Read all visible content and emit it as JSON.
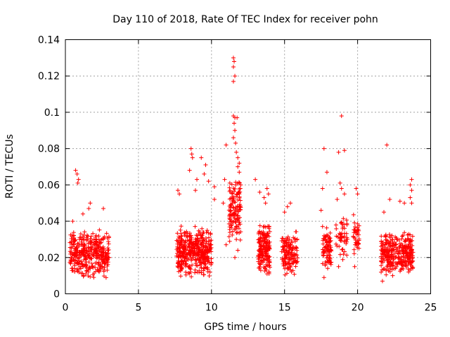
{
  "chart_data": {
    "type": "scatter",
    "title": "Day 110 of 2018, Rate Of TEC Index for receiver pohn",
    "xlabel": "GPS time / hours",
    "ylabel": "ROTI / TECUs",
    "xlim": [
      0,
      25
    ],
    "ylim": [
      0,
      0.14
    ],
    "x_ticks": [
      0,
      5,
      10,
      15,
      20,
      25
    ],
    "y_ticks": [
      0,
      0.02,
      0.04,
      0.06,
      0.08,
      0.1,
      0.12,
      0.14
    ],
    "x_tick_labels": [
      "0",
      "5",
      "10",
      "15",
      "20",
      "25"
    ],
    "y_tick_labels": [
      "0",
      "0.02",
      "0.04",
      "0.06",
      "0.08",
      "0.1",
      "0.12",
      "0.14"
    ],
    "grid": true,
    "marker": "plus",
    "color": "#ff0000",
    "clusters": [
      {
        "x_range": [
          0.3,
          3.0
        ],
        "y_range": [
          0.008,
          0.036
        ],
        "count": 380
      },
      {
        "x_range": [
          7.6,
          10.0
        ],
        "y_range": [
          0.008,
          0.038
        ],
        "count": 420
      },
      {
        "x_range": [
          11.2,
          12.0
        ],
        "y_range": [
          0.025,
          0.065
        ],
        "count": 130
      },
      {
        "x_range": [
          13.2,
          14.0
        ],
        "y_range": [
          0.01,
          0.04
        ],
        "count": 180
      },
      {
        "x_range": [
          14.8,
          15.9
        ],
        "y_range": [
          0.01,
          0.035
        ],
        "count": 140
      },
      {
        "x_range": [
          17.6,
          18.2
        ],
        "y_range": [
          0.012,
          0.038
        ],
        "count": 90
      },
      {
        "x_range": [
          18.5,
          19.3
        ],
        "y_range": [
          0.018,
          0.045
        ],
        "count": 50
      },
      {
        "x_range": [
          19.7,
          20.1
        ],
        "y_range": [
          0.02,
          0.045
        ],
        "count": 40
      },
      {
        "x_range": [
          21.6,
          23.8
        ],
        "y_range": [
          0.01,
          0.035
        ],
        "count": 320
      }
    ],
    "highlights": [
      {
        "x": 0.7,
        "y": 0.068
      },
      {
        "x": 0.8,
        "y": 0.066
      },
      {
        "x": 0.9,
        "y": 0.063
      },
      {
        "x": 0.85,
        "y": 0.061
      },
      {
        "x": 1.7,
        "y": 0.05
      },
      {
        "x": 1.6,
        "y": 0.047
      },
      {
        "x": 0.5,
        "y": 0.04
      },
      {
        "x": 2.6,
        "y": 0.047
      },
      {
        "x": 1.2,
        "y": 0.044
      },
      {
        "x": 7.7,
        "y": 0.057
      },
      {
        "x": 7.8,
        "y": 0.055
      },
      {
        "x": 8.6,
        "y": 0.08
      },
      {
        "x": 8.65,
        "y": 0.077
      },
      {
        "x": 8.7,
        "y": 0.075
      },
      {
        "x": 8.5,
        "y": 0.068
      },
      {
        "x": 9.3,
        "y": 0.075
      },
      {
        "x": 9.6,
        "y": 0.071
      },
      {
        "x": 9.8,
        "y": 0.062
      },
      {
        "x": 9.5,
        "y": 0.066
      },
      {
        "x": 9.0,
        "y": 0.063
      },
      {
        "x": 8.9,
        "y": 0.057
      },
      {
        "x": 10.2,
        "y": 0.059
      },
      {
        "x": 10.2,
        "y": 0.052
      },
      {
        "x": 11.5,
        "y": 0.13
      },
      {
        "x": 11.55,
        "y": 0.128
      },
      {
        "x": 11.5,
        "y": 0.125
      },
      {
        "x": 11.6,
        "y": 0.12
      },
      {
        "x": 11.5,
        "y": 0.117
      },
      {
        "x": 11.5,
        "y": 0.098
      },
      {
        "x": 11.6,
        "y": 0.097
      },
      {
        "x": 11.75,
        "y": 0.097
      },
      {
        "x": 11.55,
        "y": 0.094
      },
      {
        "x": 11.6,
        "y": 0.09
      },
      {
        "x": 11.5,
        "y": 0.086
      },
      {
        "x": 11.65,
        "y": 0.083
      },
      {
        "x": 11.7,
        "y": 0.078
      },
      {
        "x": 11.8,
        "y": 0.075
      },
      {
        "x": 11.9,
        "y": 0.072
      },
      {
        "x": 11.0,
        "y": 0.082
      },
      {
        "x": 10.9,
        "y": 0.063
      },
      {
        "x": 11.9,
        "y": 0.067
      },
      {
        "x": 11.8,
        "y": 0.07
      },
      {
        "x": 12.0,
        "y": 0.06
      },
      {
        "x": 11.9,
        "y": 0.055
      },
      {
        "x": 10.8,
        "y": 0.05
      },
      {
        "x": 11.0,
        "y": 0.027
      },
      {
        "x": 11.6,
        "y": 0.02
      },
      {
        "x": 11.8,
        "y": 0.024
      },
      {
        "x": 13.0,
        "y": 0.063
      },
      {
        "x": 13.3,
        "y": 0.056
      },
      {
        "x": 13.6,
        "y": 0.053
      },
      {
        "x": 13.8,
        "y": 0.058
      },
      {
        "x": 13.9,
        "y": 0.055
      },
      {
        "x": 13.7,
        "y": 0.05
      },
      {
        "x": 15.2,
        "y": 0.048
      },
      {
        "x": 15.4,
        "y": 0.05
      },
      {
        "x": 15.0,
        "y": 0.045
      },
      {
        "x": 17.7,
        "y": 0.08
      },
      {
        "x": 17.9,
        "y": 0.067
      },
      {
        "x": 17.6,
        "y": 0.058
      },
      {
        "x": 17.5,
        "y": 0.046
      },
      {
        "x": 17.7,
        "y": 0.009
      },
      {
        "x": 18.9,
        "y": 0.098
      },
      {
        "x": 18.7,
        "y": 0.078
      },
      {
        "x": 19.1,
        "y": 0.079
      },
      {
        "x": 18.8,
        "y": 0.061
      },
      {
        "x": 18.9,
        "y": 0.058
      },
      {
        "x": 19.1,
        "y": 0.055
      },
      {
        "x": 18.6,
        "y": 0.052
      },
      {
        "x": 18.7,
        "y": 0.015
      },
      {
        "x": 19.9,
        "y": 0.058
      },
      {
        "x": 20.0,
        "y": 0.055
      },
      {
        "x": 19.8,
        "y": 0.015
      },
      {
        "x": 22.0,
        "y": 0.082
      },
      {
        "x": 22.2,
        "y": 0.052
      },
      {
        "x": 21.8,
        "y": 0.045
      },
      {
        "x": 22.9,
        "y": 0.051
      },
      {
        "x": 23.2,
        "y": 0.05
      },
      {
        "x": 23.7,
        "y": 0.063
      },
      {
        "x": 23.6,
        "y": 0.06
      },
      {
        "x": 23.7,
        "y": 0.057
      },
      {
        "x": 23.6,
        "y": 0.053
      },
      {
        "x": 23.7,
        "y": 0.05
      },
      {
        "x": 21.7,
        "y": 0.007
      },
      {
        "x": 22.4,
        "y": 0.01
      }
    ]
  }
}
